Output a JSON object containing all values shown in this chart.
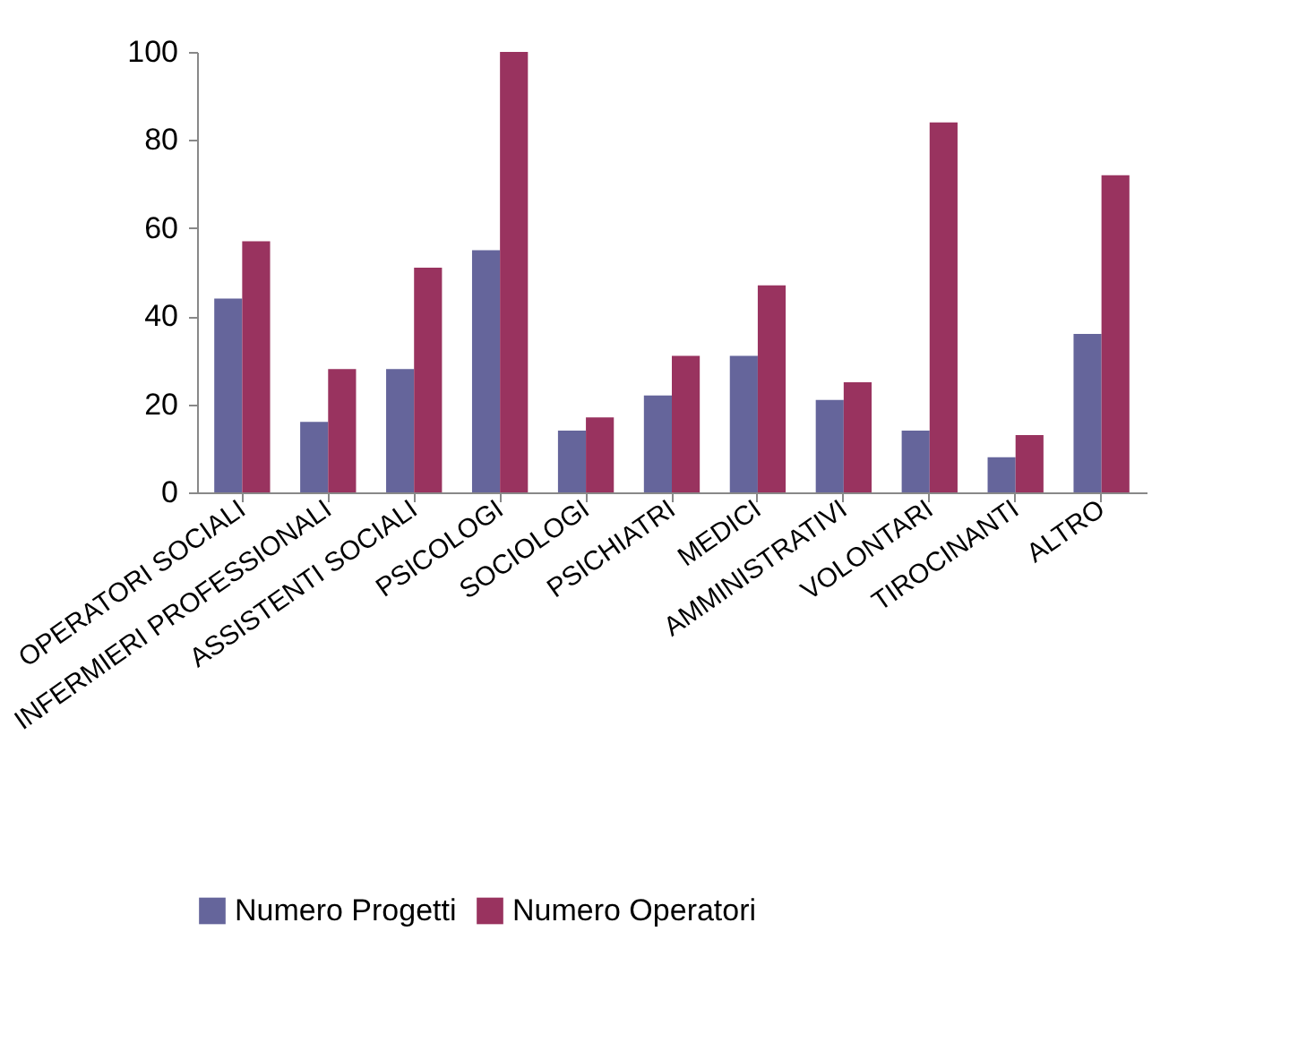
{
  "chart_data": {
    "type": "bar",
    "categories": [
      "OPERATORI SOCIALI",
      "INFERMIERI PROFESSIONALI",
      "ASSISTENTI SOCIALI",
      "PSICOLOGI",
      "SOCIOLOGI",
      "PSICHIATRI",
      "MEDICI",
      "AMMINISTRATIVI",
      "VOLONTARI",
      "TIROCINANTI",
      "ALTRO"
    ],
    "series": [
      {
        "name": "Numero Progetti",
        "color": "#65659b",
        "values": [
          44,
          16,
          28,
          55,
          14,
          22,
          31,
          21,
          14,
          8,
          36
        ]
      },
      {
        "name": "Numero Operatori",
        "color": "#99335f",
        "values": [
          57,
          28,
          51,
          100,
          17,
          31,
          47,
          25,
          84,
          13,
          72
        ]
      }
    ],
    "ylim": [
      0,
      100
    ],
    "yticks": [
      0,
      20,
      40,
      60,
      80,
      100
    ],
    "grid": false,
    "legend": "bottom"
  }
}
